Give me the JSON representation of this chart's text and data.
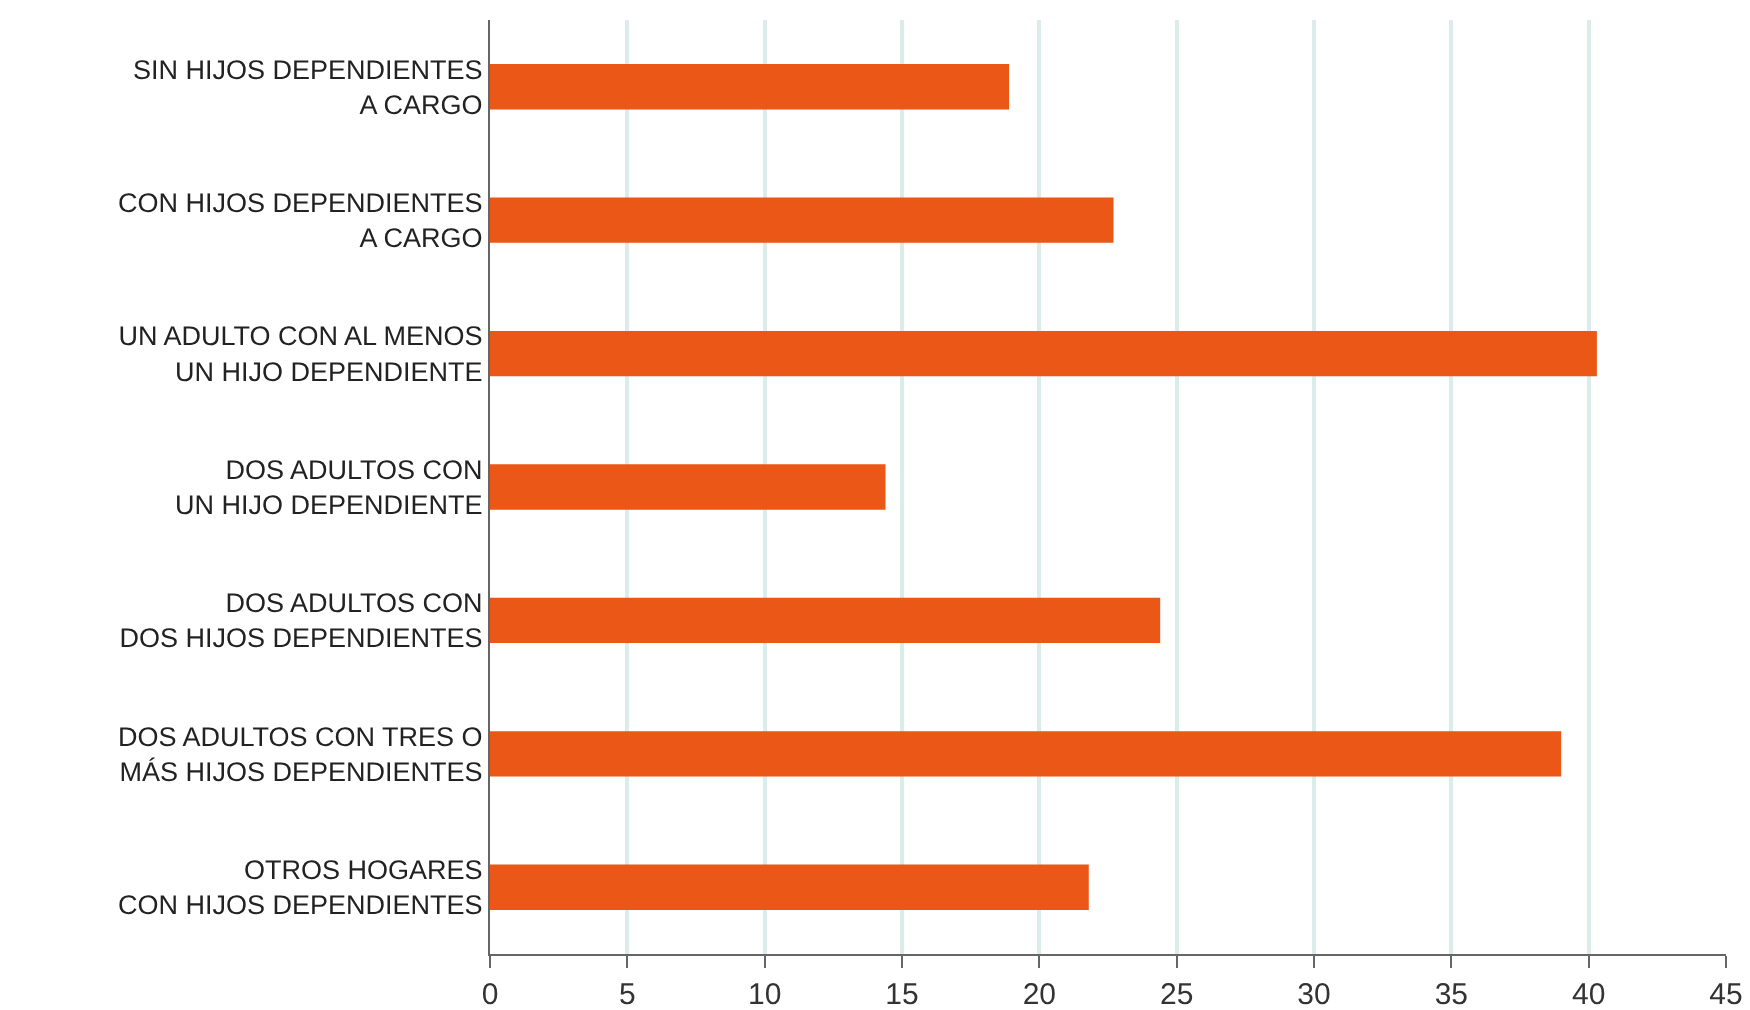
{
  "chart_data": {
    "type": "bar",
    "orientation": "horizontal",
    "categories": [
      "SIN HIJOS DEPENDIENTES\nA CARGO",
      "CON HIJOS DEPENDIENTES\nA CARGO",
      "UN ADULTO CON AL MENOS\nUN HIJO DEPENDIENTE",
      "DOS ADULTOS CON\nUN HIJO DEPENDIENTE",
      "DOS ADULTOS CON\nDOS HIJOS DEPENDIENTES",
      "DOS ADULTOS CON TRES O\nMÁS HIJOS DEPENDIENTES",
      "OTROS HOGARES\nCON HIJOS DEPENDIENTES"
    ],
    "values": [
      18.9,
      22.7,
      40.3,
      14.4,
      24.4,
      39.0,
      21.8
    ],
    "color": "#ea5716",
    "xlim": [
      0,
      45
    ],
    "xticks": [
      0,
      5,
      10,
      15,
      20,
      25,
      30,
      35,
      40,
      45
    ],
    "grid": "x"
  }
}
